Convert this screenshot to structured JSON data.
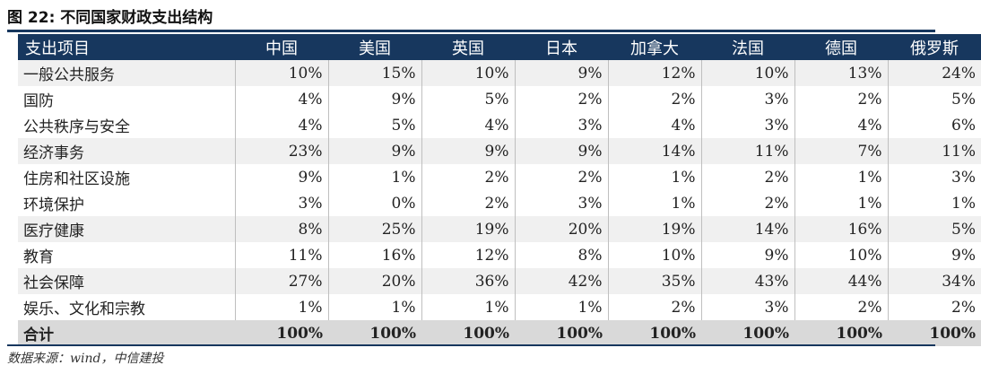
{
  "title": "图 22: 不同国家财政支出结构",
  "source": "数据来源：wind，中信建投",
  "table": {
    "headers": [
      "支出项目",
      "中国",
      "美国",
      "英国",
      "日本",
      "加拿大",
      "法国",
      "德国",
      "俄罗斯"
    ],
    "rows": [
      [
        "一般公共服务",
        "10%",
        "15%",
        "10%",
        "9%",
        "12%",
        "10%",
        "13%",
        "24%"
      ],
      [
        "国防",
        "4%",
        "9%",
        "5%",
        "2%",
        "2%",
        "3%",
        "2%",
        "5%"
      ],
      [
        "公共秩序与安全",
        "4%",
        "5%",
        "4%",
        "3%",
        "4%",
        "3%",
        "4%",
        "6%"
      ],
      [
        "经济事务",
        "23%",
        "9%",
        "9%",
        "9%",
        "14%",
        "11%",
        "7%",
        "11%"
      ],
      [
        "住房和社区设施",
        "9%",
        "1%",
        "2%",
        "2%",
        "1%",
        "2%",
        "1%",
        "3%"
      ],
      [
        "环境保护",
        "3%",
        "0%",
        "2%",
        "3%",
        "1%",
        "2%",
        "1%",
        "1%"
      ],
      [
        "医疗健康",
        "8%",
        "25%",
        "19%",
        "20%",
        "19%",
        "14%",
        "16%",
        "5%"
      ],
      [
        "教育",
        "11%",
        "16%",
        "12%",
        "8%",
        "10%",
        "9%",
        "10%",
        "9%"
      ],
      [
        "社会保障",
        "27%",
        "20%",
        "36%",
        "42%",
        "35%",
        "43%",
        "44%",
        "34%"
      ],
      [
        "娱乐、文化和宗教",
        "1%",
        "1%",
        "1%",
        "1%",
        "2%",
        "3%",
        "2%",
        "2%"
      ]
    ],
    "total": [
      "合计",
      "100%",
      "100%",
      "100%",
      "100%",
      "100%",
      "100%",
      "100%",
      "100%"
    ]
  }
}
